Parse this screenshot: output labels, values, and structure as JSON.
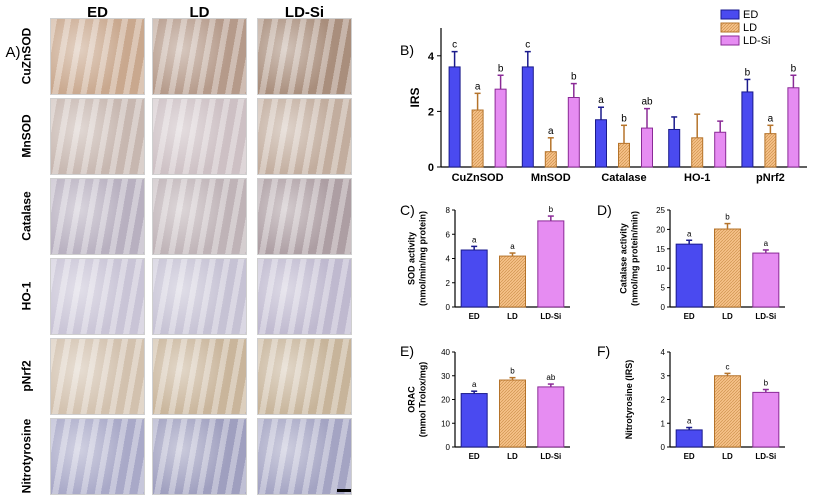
{
  "panelA": {
    "label": "A)",
    "columns": [
      "ED",
      "LD",
      "LD-Si"
    ],
    "rows": [
      "CuZnSOD",
      "MnSOD",
      "Catalase",
      "HO-1",
      "pNrf2",
      "Nitrotyrosine"
    ]
  },
  "colors": {
    "ED": "#4a4af0",
    "LD": "#f5c188",
    "LD-Si": "#e68cf2",
    "ED_stroke": "#1a1a8c",
    "LD_stroke": "#b5732a",
    "LDSi_stroke": "#8a2a96"
  },
  "chart_data": [
    {
      "panel": "B)",
      "type": "bar",
      "ylabel": "IRS",
      "ylim": [
        0,
        5
      ],
      "yticks": [
        0,
        2,
        4
      ],
      "categories": [
        "CuZnSOD",
        "MnSOD",
        "Catalase",
        "HO-1",
        "pNrf2"
      ],
      "legend": "top-right",
      "series": [
        {
          "name": "ED",
          "values": [
            3.6,
            3.6,
            1.7,
            1.35,
            2.7
          ],
          "errors": [
            0.55,
            0.55,
            0.45,
            0.45,
            0.45
          ],
          "letters": [
            "c",
            "c",
            "a",
            "",
            "b"
          ]
        },
        {
          "name": "LD",
          "values": [
            2.05,
            0.55,
            0.85,
            1.05,
            1.2
          ],
          "errors": [
            0.6,
            0.5,
            0.65,
            0.85,
            0.3
          ],
          "letters": [
            "a",
            "a",
            "b",
            "",
            "a"
          ]
        },
        {
          "name": "LD-Si",
          "values": [
            2.8,
            2.5,
            1.4,
            1.25,
            2.85
          ],
          "errors": [
            0.5,
            0.5,
            0.7,
            0.4,
            0.45
          ],
          "letters": [
            "b",
            "b",
            "ab",
            "",
            "b"
          ]
        }
      ]
    },
    {
      "panel": "C)",
      "type": "bar",
      "ylabel_lines": [
        "SOD activity",
        "(nmol/min/mg protein)"
      ],
      "ylim": [
        0,
        8
      ],
      "yticks": [
        0,
        2,
        4,
        6,
        8
      ],
      "categories": [
        "ED",
        "LD",
        "LD-Si"
      ],
      "values": [
        4.7,
        4.2,
        7.1
      ],
      "errors": [
        0.3,
        0.25,
        0.4
      ],
      "letters": [
        "a",
        "a",
        "b"
      ]
    },
    {
      "panel": "D)",
      "type": "bar",
      "ylabel_lines": [
        "Catalase activity",
        "(nmol/mg protein/min)"
      ],
      "ylim": [
        0,
        25
      ],
      "yticks": [
        0,
        5,
        10,
        15,
        20,
        25
      ],
      "categories": [
        "ED",
        "LD",
        "LD-Si"
      ],
      "values": [
        16.2,
        20.1,
        13.9
      ],
      "errors": [
        1.0,
        1.4,
        0.8
      ],
      "letters": [
        "a",
        "b",
        "a"
      ]
    },
    {
      "panel": "E)",
      "type": "bar",
      "ylabel_lines": [
        "ORAC",
        "(mmol Trolox/mg)"
      ],
      "ylim": [
        0,
        40
      ],
      "yticks": [
        0,
        10,
        20,
        30,
        40
      ],
      "categories": [
        "ED",
        "LD",
        "LD-Si"
      ],
      "values": [
        22.5,
        28.2,
        25.3
      ],
      "errors": [
        1.0,
        1.0,
        1.2
      ],
      "letters": [
        "a",
        "b",
        "ab"
      ]
    },
    {
      "panel": "F)",
      "type": "bar",
      "ylabel_lines": [
        "Nitrotyrosine (IRS)"
      ],
      "ylim": [
        0,
        4
      ],
      "yticks": [
        0,
        1,
        2,
        3,
        4
      ],
      "categories": [
        "ED",
        "LD",
        "LD-Si"
      ],
      "values": [
        0.72,
        3.0,
        2.3
      ],
      "errors": [
        0.1,
        0.1,
        0.12
      ],
      "letters": [
        "a",
        "c",
        "b"
      ]
    }
  ]
}
